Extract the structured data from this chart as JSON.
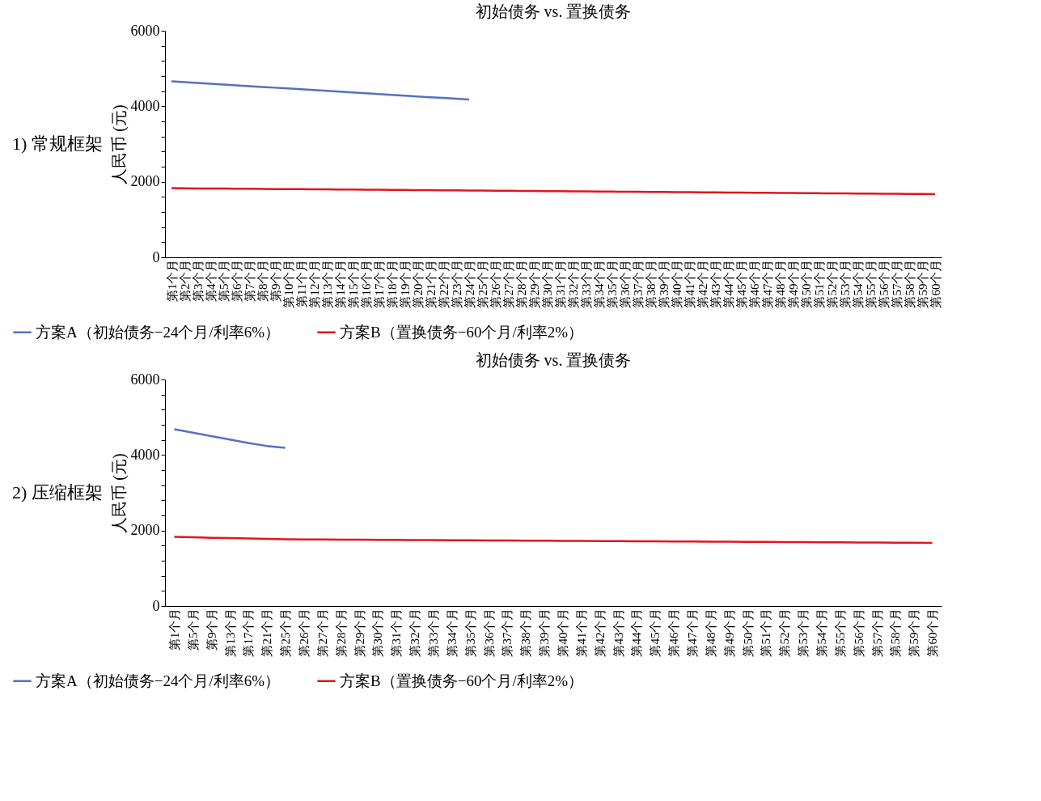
{
  "chart_data": [
    {
      "type": "line",
      "title": "初始债务 vs. 置换债务",
      "ylabel": "人民币 (元)",
      "annotations": [
        "1) 常规框架"
      ],
      "legend": "bottom",
      "grid": false,
      "line_style": "solid",
      "marker": "none",
      "categories": [
        "第1个月",
        "第2个月",
        "第3个月",
        "第4个月",
        "第5个月",
        "第6个月",
        "第7个月",
        "第8个月",
        "第9个月",
        "第10个月",
        "第11个月",
        "第12个月",
        "第13个月",
        "第14个月",
        "第15个月",
        "第16个月",
        "第17个月",
        "第18个月",
        "第19个月",
        "第20个月",
        "第21个月",
        "第22个月",
        "第23个月",
        "第24个月",
        "第25个月",
        "第26个月",
        "第27个月",
        "第28个月",
        "第29个月",
        "第30个月",
        "第31个月",
        "第32个月",
        "第33个月",
        "第34个月",
        "第35个月",
        "第36个月",
        "第37个月",
        "第38个月",
        "第39个月",
        "第40个月",
        "第41个月",
        "第42个月",
        "第43个月",
        "第44个月",
        "第45个月",
        "第46个月",
        "第47个月",
        "第48个月",
        "第49个月",
        "第50个月",
        "第51个月",
        "第52个月",
        "第53个月",
        "第54个月",
        "第55个月",
        "第56个月",
        "第57个月",
        "第58个月",
        "第59个月",
        "第60个月"
      ],
      "ylim": [
        0,
        6000
      ],
      "yticks": [
        0,
        {
          "value": 400,
          "label": null
        },
        {
          "value": 800,
          "label": null
        },
        {
          "value": 1200,
          "label": null
        },
        {
          "value": 1600,
          "label": null
        },
        2000,
        {
          "value": 2400,
          "label": null
        },
        {
          "value": 2800,
          "label": null
        },
        {
          "value": 3200,
          "label": null
        },
        {
          "value": 3600,
          "label": null
        },
        4000,
        {
          "value": 4400,
          "label": null
        },
        {
          "value": 4800,
          "label": null
        },
        {
          "value": 5200,
          "label": null
        },
        {
          "value": 5600,
          "label": null
        },
        6000
      ],
      "series": [
        {
          "name": "方案A（初始债务−24个月/利率6%）",
          "color": "#5470c6",
          "values": [
            4660,
            4639,
            4618,
            4597,
            4576,
            4555,
            4534,
            4513,
            4492,
            4471,
            4450,
            4429,
            4408,
            4387,
            4366,
            4345,
            4324,
            4303,
            4282,
            4261,
            4240,
            4219,
            4198,
            4180,
            null,
            null,
            null,
            null,
            null,
            null,
            null,
            null,
            null,
            null,
            null,
            null,
            null,
            null,
            null,
            null,
            null,
            null,
            null,
            null,
            null,
            null,
            null,
            null,
            null,
            null,
            null,
            null,
            null,
            null,
            null,
            null,
            null,
            null,
            null,
            null
          ]
        },
        {
          "name": "方案B（置换债务−60个月/利率2%）",
          "color": "#e3141e",
          "values": [
            1830,
            1827,
            1824,
            1822,
            1819,
            1816,
            1814,
            1811,
            1808,
            1806,
            1803,
            1800,
            1798,
            1795,
            1792,
            1790,
            1787,
            1784,
            1782,
            1779,
            1776,
            1774,
            1771,
            1768,
            1766,
            1763,
            1760,
            1758,
            1755,
            1752,
            1750,
            1747,
            1744,
            1742,
            1739,
            1736,
            1734,
            1731,
            1728,
            1726,
            1723,
            1720,
            1718,
            1715,
            1712,
            1710,
            1707,
            1704,
            1702,
            1699,
            1696,
            1694,
            1691,
            1688,
            1686,
            1683,
            1680,
            1678,
            1675,
            1672
          ]
        }
      ]
    },
    {
      "type": "line",
      "title": "初始债务 vs. 置换债务",
      "ylabel": "人民币 (元)",
      "annotations": [
        "2) 压缩框架"
      ],
      "legend": "bottom",
      "grid": false,
      "line_style": "solid",
      "marker": "none",
      "categories": [
        "第1个月",
        "第5个月",
        "第9个月",
        "第13个月",
        "第17个月",
        "第21个月",
        "第25个月",
        "第26个月",
        "第27个月",
        "第28个月",
        "第29个月",
        "第30个月",
        "第31个月",
        "第32个月",
        "第33个月",
        "第34个月",
        "第35个月",
        "第36个月",
        "第37个月",
        "第38个月",
        "第39个月",
        "第40个月",
        "第41个月",
        "第42个月",
        "第43个月",
        "第44个月",
        "第45个月",
        "第46个月",
        "第47个月",
        "第48个月",
        "第49个月",
        "第50个月",
        "第51个月",
        "第52个月",
        "第53个月",
        "第54个月",
        "第55个月",
        "第56个月",
        "第57个月",
        "第58个月",
        "第59个月",
        "第60个月"
      ],
      "ylim": [
        0,
        6000
      ],
      "yticks": [
        0,
        {
          "value": 400,
          "label": null
        },
        {
          "value": 800,
          "label": null
        },
        {
          "value": 1200,
          "label": null
        },
        {
          "value": 1600,
          "label": null
        },
        2000,
        {
          "value": 2400,
          "label": null
        },
        {
          "value": 2800,
          "label": null
        },
        {
          "value": 3200,
          "label": null
        },
        {
          "value": 3600,
          "label": null
        },
        4000,
        {
          "value": 4400,
          "label": null
        },
        {
          "value": 4800,
          "label": null
        },
        {
          "value": 5200,
          "label": null
        },
        {
          "value": 5600,
          "label": null
        },
        6000
      ],
      "series": [
        {
          "name": "方案A（初始债务−24个月/利率6%）",
          "color": "#5470c6",
          "values": [
            4680,
            4590,
            4500,
            4410,
            4320,
            4240,
            4190,
            null,
            null,
            null,
            null,
            null,
            null,
            null,
            null,
            null,
            null,
            null,
            null,
            null,
            null,
            null,
            null,
            null,
            null,
            null,
            null,
            null,
            null,
            null,
            null,
            null,
            null,
            null,
            null,
            null,
            null,
            null,
            null,
            null,
            null,
            null
          ]
        },
        {
          "name": "方案B（置换债务−60个月/利率2%）",
          "color": "#e3141e",
          "values": [
            1830,
            1819,
            1808,
            1798,
            1787,
            1776,
            1766,
            1763,
            1760,
            1758,
            1755,
            1752,
            1750,
            1747,
            1744,
            1742,
            1739,
            1736,
            1734,
            1731,
            1728,
            1726,
            1723,
            1720,
            1718,
            1715,
            1712,
            1710,
            1707,
            1704,
            1702,
            1699,
            1696,
            1694,
            1691,
            1688,
            1686,
            1683,
            1680,
            1678,
            1675,
            1672
          ]
        }
      ]
    }
  ]
}
